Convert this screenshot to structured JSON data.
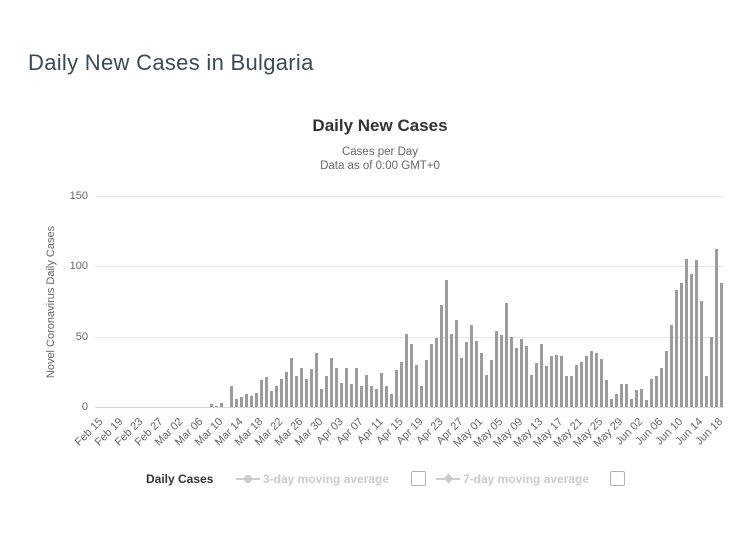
{
  "page": {
    "title": "Daily New Cases in Bulgaria"
  },
  "chart_data": {
    "type": "bar",
    "title": "Daily New Cases",
    "subtitle_line1": "Cases per Day",
    "subtitle_line2": "Data as of 0:00 GMT+0",
    "ylabel": "Novel Coronavirus Daily Cases",
    "series_name": "Daily Cases",
    "ylim": [
      0,
      150
    ],
    "yticks": [
      0,
      50,
      100,
      150
    ],
    "xtick_every": 4,
    "grid": true,
    "legend_position": "bottom",
    "bar_color": "#9c9c9c",
    "grid_color": "#e6e6e6",
    "axis_line_color": "#ccd6eb",
    "categories": [
      "Feb 15",
      "Feb 16",
      "Feb 17",
      "Feb 18",
      "Feb 19",
      "Feb 20",
      "Feb 21",
      "Feb 22",
      "Feb 23",
      "Feb 24",
      "Feb 25",
      "Feb 26",
      "Feb 27",
      "Feb 28",
      "Feb 29",
      "Mar 01",
      "Mar 02",
      "Mar 03",
      "Mar 04",
      "Mar 05",
      "Mar 06",
      "Mar 07",
      "Mar 08",
      "Mar 09",
      "Mar 10",
      "Mar 11",
      "Mar 12",
      "Mar 13",
      "Mar 14",
      "Mar 15",
      "Mar 16",
      "Mar 17",
      "Mar 18",
      "Mar 19",
      "Mar 20",
      "Mar 21",
      "Mar 22",
      "Mar 23",
      "Mar 24",
      "Mar 25",
      "Mar 26",
      "Mar 27",
      "Mar 28",
      "Mar 29",
      "Mar 30",
      "Mar 31",
      "Apr 01",
      "Apr 02",
      "Apr 03",
      "Apr 04",
      "Apr 05",
      "Apr 06",
      "Apr 07",
      "Apr 08",
      "Apr 09",
      "Apr 10",
      "Apr 11",
      "Apr 12",
      "Apr 13",
      "Apr 14",
      "Apr 15",
      "Apr 16",
      "Apr 17",
      "Apr 18",
      "Apr 19",
      "Apr 20",
      "Apr 21",
      "Apr 22",
      "Apr 23",
      "Apr 24",
      "Apr 25",
      "Apr 26",
      "Apr 27",
      "Apr 28",
      "Apr 29",
      "Apr 30",
      "May 01",
      "May 02",
      "May 03",
      "May 04",
      "May 05",
      "May 06",
      "May 07",
      "May 08",
      "May 09",
      "May 10",
      "May 11",
      "May 12",
      "May 13",
      "May 14",
      "May 15",
      "May 16",
      "May 17",
      "May 18",
      "May 19",
      "May 20",
      "May 21",
      "May 22",
      "May 23",
      "May 24",
      "May 25",
      "May 26",
      "May 27",
      "May 28",
      "May 29",
      "May 30",
      "May 31",
      "Jun 01",
      "Jun 02",
      "Jun 03",
      "Jun 04",
      "Jun 05",
      "Jun 06",
      "Jun 07",
      "Jun 08",
      "Jun 09",
      "Jun 10",
      "Jun 11",
      "Jun 12",
      "Jun 13",
      "Jun 14",
      "Jun 15",
      "Jun 16",
      "Jun 17",
      "Jun 18"
    ],
    "values": [
      0,
      0,
      0,
      0,
      0,
      0,
      0,
      0,
      0,
      0,
      0,
      0,
      0,
      0,
      0,
      0,
      0,
      0,
      0,
      0,
      0,
      0,
      2,
      1,
      3,
      0,
      15,
      6,
      7,
      9,
      8,
      10,
      19,
      21,
      11,
      15,
      20,
      25,
      35,
      22,
      28,
      20,
      27,
      38,
      13,
      22,
      35,
      28,
      17,
      28,
      16,
      28,
      15,
      23,
      15,
      13,
      24,
      15,
      9,
      26,
      32,
      52,
      45,
      30,
      15,
      33,
      45,
      49,
      72,
      90,
      52,
      62,
      35,
      46,
      58,
      47,
      38,
      23,
      33,
      54,
      51,
      74,
      50,
      42,
      48,
      43,
      23,
      31,
      45,
      29,
      36,
      37,
      36,
      22,
      22,
      30,
      32,
      36,
      40,
      38,
      34,
      19,
      6,
      9,
      16,
      16,
      6,
      12,
      13,
      5,
      20,
      22,
      28,
      40,
      58,
      83,
      88,
      105,
      94,
      104,
      75,
      22,
      50,
      112,
      88
    ],
    "legend": {
      "items": [
        {
          "label": "Daily Cases",
          "marker": "circle",
          "color": "#9b9b9b",
          "enabled": true,
          "checkbox": false
        },
        {
          "label": "3-day moving average",
          "marker": "line-circle",
          "color": "#cccccc",
          "enabled": false,
          "checkbox": true
        },
        {
          "label": "7-day moving average",
          "marker": "line-diamond",
          "color": "#cccccc",
          "enabled": false,
          "checkbox": true
        }
      ]
    }
  }
}
